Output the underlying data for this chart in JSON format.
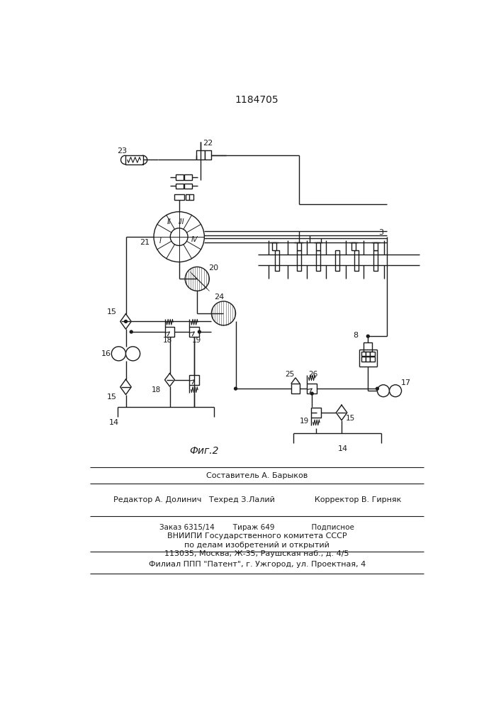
{
  "title": "1184705",
  "fig_label": "Фиг.2",
  "bg_color": "#ffffff",
  "line_color": "#1a1a1a",
  "footer_lines": [
    "Составитель А. Барыков",
    "Редактор А. Долинич   Техред З.Лалий                Корректор В. Гирняк",
    "Заказ 6315/14        Тираж 649                Подписное",
    "ВНИИПИ Государственного комитета СССР",
    "по делам изобретений и открытий",
    "113035, Москва, Ж-35, Раушская наб., д. 4/5",
    "Филиал ППП \"Патент\", г. Ужгород, ул. Проектная, 4"
  ]
}
